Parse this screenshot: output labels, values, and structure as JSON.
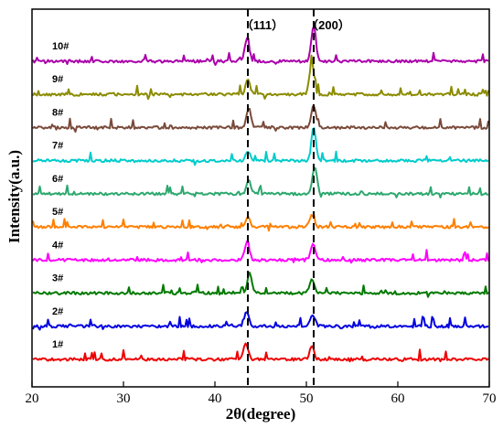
{
  "chart_data": {
    "type": "line",
    "xlabel": "2θ(degree)",
    "ylabel": "Intensity(a.u.)",
    "xlim": [
      20,
      70
    ],
    "xticks": [
      20,
      30,
      40,
      50,
      60,
      70
    ],
    "grid": false,
    "annotations": [
      {
        "label": "（111）",
        "x": 43.6,
        "style": "dashed-vertical-line"
      },
      {
        "label": "（200）",
        "x": 50.8,
        "style": "dashed-vertical-line"
      }
    ],
    "series": [
      {
        "name": "1#",
        "color": "#ee0000",
        "peaks": [
          {
            "x": 43.4,
            "h": 18
          },
          {
            "x": 50.6,
            "h": 14
          }
        ]
      },
      {
        "name": "2#",
        "color": "#0000e0",
        "peaks": [
          {
            "x": 43.5,
            "h": 16
          },
          {
            "x": 50.7,
            "h": 13
          }
        ]
      },
      {
        "name": "3#",
        "color": "#007a00",
        "peaks": [
          {
            "x": 43.8,
            "h": 22
          },
          {
            "x": 50.6,
            "h": 16
          }
        ]
      },
      {
        "name": "4#",
        "color": "#ff00ff",
        "peaks": [
          {
            "x": 43.5,
            "h": 22
          },
          {
            "x": 50.7,
            "h": 18
          }
        ]
      },
      {
        "name": "5#",
        "color": "#ff7f00",
        "peaks": [
          {
            "x": 43.6,
            "h": 10
          },
          {
            "x": 50.6,
            "h": 12
          }
        ]
      },
      {
        "name": "6#",
        "color": "#2ca86e",
        "peaks": [
          {
            "x": 43.7,
            "h": 14
          },
          {
            "x": 50.9,
            "h": 30
          }
        ]
      },
      {
        "name": "7#",
        "color": "#00cccc",
        "peaks": [
          {
            "x": 43.6,
            "h": 10
          },
          {
            "x": 50.8,
            "h": 36
          }
        ]
      },
      {
        "name": "8#",
        "color": "#7a4a3a",
        "peaks": [
          {
            "x": 43.7,
            "h": 22
          },
          {
            "x": 50.8,
            "h": 24
          }
        ]
      },
      {
        "name": "9#",
        "color": "#8b8b00",
        "peaks": [
          {
            "x": 43.6,
            "h": 16
          },
          {
            "x": 50.6,
            "h": 36
          }
        ]
      },
      {
        "name": "10#",
        "color": "#aa00aa",
        "peaks": [
          {
            "x": 43.5,
            "h": 24
          },
          {
            "x": 50.8,
            "h": 40
          }
        ]
      }
    ]
  }
}
